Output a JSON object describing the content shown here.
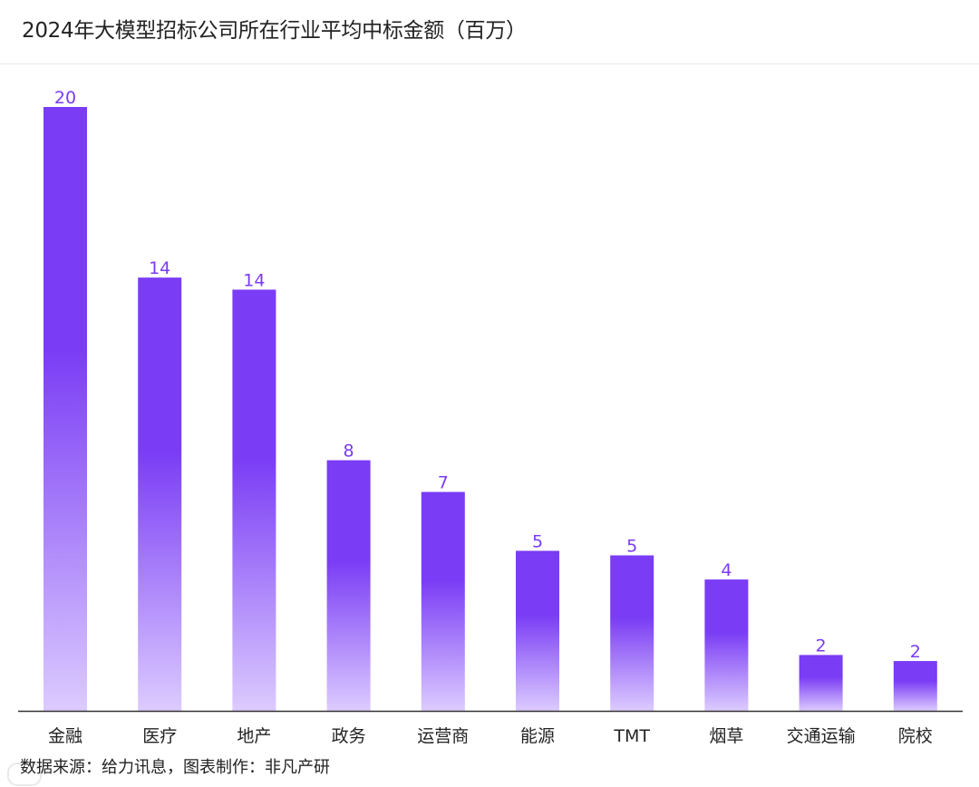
{
  "title": "2024年大模型招标公司所在行业平均中标金额（百万）",
  "source": "数据来源：给力讯息，图表制作：非凡产研",
  "colors": {
    "bar_top": "#7a3cf5",
    "bar_bottom": "#dccbff",
    "label": "#7a3cf5",
    "axis": "#333333"
  },
  "chart_data": {
    "type": "bar",
    "title": "2024年大模型招标公司所在行业平均中标金额（百万）",
    "xlabel": "",
    "ylabel": "",
    "categories": [
      "金融",
      "医疗",
      "地产",
      "政务",
      "运营商",
      "能源",
      "TMT",
      "烟草",
      "交通运输",
      "院校"
    ],
    "values": [
      20,
      14,
      14,
      8,
      7,
      5,
      5,
      4,
      2,
      2
    ],
    "heights": [
      20.0,
      14.35,
      13.95,
      8.3,
      7.25,
      5.3,
      5.15,
      4.35,
      1.85,
      1.65
    ],
    "ylim": [
      0,
      20
    ],
    "grid": false,
    "legend": "none"
  }
}
